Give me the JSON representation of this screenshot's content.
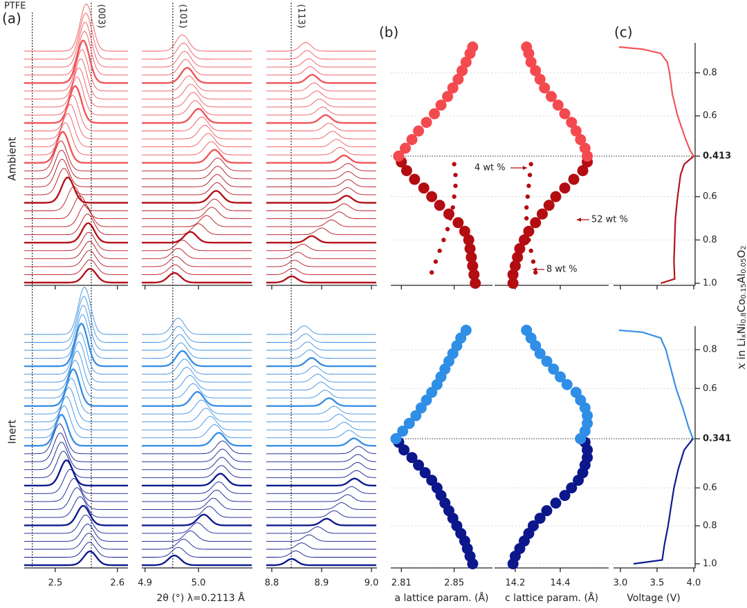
{
  "chart_data": [
    {
      "type": "waterfall",
      "label": "(a)",
      "xlabel": "2θ (°) λ=0.2113 Å",
      "panels": [
        {
          "xlim": [
            2.45,
            2.617
          ],
          "xticks": [
            2.5,
            2.6
          ],
          "ref_lines": [
            {
              "value": 2.463,
              "label": "PTFE"
            },
            {
              "value": 2.558,
              "label": "(003)"
            }
          ]
        },
        {
          "xlim": [
            4.894,
            5.101
          ],
          "xticks": [
            4.9,
            {
              "value": 5,
              "label": "5.0"
            }
          ],
          "ref_lines": [
            {
              "value": 4.952,
              "label": "(101)"
            }
          ]
        },
        {
          "xlim": [
            8.789,
            9.011
          ],
          "xticks": [
            8.8,
            8.9,
            {
              "value": 9,
              "label": "9.0"
            }
          ],
          "ref_lines": [
            {
              "value": 8.839,
              "label": "(113)"
            }
          ]
        }
      ],
      "groups": [
        {
          "name": "Ambient",
          "color": "#e8474c",
          "segments": [
            {
              "color": "#b3121a",
              "peaks": [
                [
                  2.556,
                  2.556,
                  2.555,
                  2.555,
                  2.554,
                  2.553,
                  2.552,
                  2.548,
                  2.54,
                  2.53,
                  2.52,
                  2.514,
                  2.511,
                  2.51,
                  2.509
                ],
                [
                  4.955,
                  4.956,
                  4.958,
                  4.962,
                  4.97,
                  4.985,
                  5.0,
                  5.015,
                  5.025,
                  5.03,
                  5.033,
                  5.035,
                  5.035,
                  5.036,
                  5.036
                ],
                [
                  8.84,
                  8.842,
                  8.846,
                  8.852,
                  8.862,
                  8.88,
                  8.9,
                  8.92,
                  8.935,
                  8.945,
                  8.95,
                  8.952,
                  8.953,
                  8.953,
                  8.953
                ]
              ]
            },
            {
              "color": "#f0555a",
              "peaks": [
                [
                  2.512,
                  2.516,
                  2.52,
                  2.524,
                  2.528,
                  2.532,
                  2.535,
                  2.538,
                  2.541,
                  2.543,
                  2.545,
                  2.547,
                  2.548,
                  2.549,
                  2.55
                ],
                [
                  5.03,
                  5.024,
                  5.018,
                  5.012,
                  5.006,
                  5.0,
                  4.994,
                  4.99,
                  4.986,
                  4.982,
                  4.979,
                  4.976,
                  4.974,
                  4.972,
                  4.97
                ],
                [
                  8.945,
                  8.937,
                  8.93,
                  8.922,
                  8.915,
                  8.908,
                  8.902,
                  8.896,
                  8.89,
                  8.885,
                  8.881,
                  8.877,
                  8.874,
                  8.871,
                  8.868
                ]
              ]
            }
          ]
        },
        {
          "name": "Inert",
          "color": "#3b4fd6",
          "segments": [
            {
              "color": "#0d1a8e",
              "peaks": [
                [
                  2.556,
                  2.555,
                  2.554,
                  2.552,
                  2.549,
                  2.545,
                  2.54,
                  2.535,
                  2.53,
                  2.524,
                  2.518,
                  2.513,
                  2.51,
                  2.508,
                  2.507
                ],
                [
                  4.955,
                  4.962,
                  4.972,
                  4.985,
                  4.998,
                  5.01,
                  5.02,
                  5.028,
                  5.034,
                  5.038,
                  5.041,
                  5.043,
                  5.044,
                  5.045,
                  5.045
                ],
                [
                  8.84,
                  8.848,
                  8.86,
                  8.875,
                  8.892,
                  8.91,
                  8.925,
                  8.94,
                  8.952,
                  8.96,
                  8.966,
                  8.97,
                  8.972,
                  8.973,
                  8.974
                ]
              ]
            },
            {
              "color": "#3a8fe2",
              "peaks": [
                [
                  2.51,
                  2.514,
                  2.518,
                  2.522,
                  2.526,
                  2.529,
                  2.532,
                  2.535,
                  2.538,
                  2.54,
                  2.542,
                  2.544,
                  2.545,
                  2.546,
                  2.547
                ],
                [
                  5.038,
                  5.03,
                  5.022,
                  5.014,
                  5.006,
                  4.998,
                  4.99,
                  4.984,
                  4.978,
                  4.974,
                  4.97,
                  4.967,
                  4.965,
                  4.963,
                  4.962
                ],
                [
                  8.965,
                  8.955,
                  8.945,
                  8.935,
                  8.925,
                  8.915,
                  8.907,
                  8.899,
                  8.892,
                  8.886,
                  8.88,
                  8.876,
                  8.872,
                  8.868,
                  8.865
                ]
              ]
            }
          ]
        }
      ]
    },
    {
      "type": "scatter",
      "label": "(b)",
      "panels": [
        {
          "key": "a",
          "xlabel": "a lattice param. (Å)",
          "xlim": [
            2.802,
            2.879
          ],
          "xticks": [
            2.81,
            2.85
          ]
        },
        {
          "key": "c",
          "xlabel": "c lattice param. (Å)",
          "xlim": [
            14.108,
            14.615
          ],
          "xticks": [
            14.2,
            14.4
          ]
        }
      ],
      "groups": [
        {
          "series": [
            {
              "color": "#b30d12",
              "x": [
                1.0,
                0.96,
                0.92,
                0.88,
                0.84,
                0.8,
                0.76,
                0.72,
                0.68,
                0.64,
                0.6,
                0.56,
                0.52,
                0.48,
                0.44,
                0.413
              ],
              "a": [
                2.866,
                2.865,
                2.864,
                2.863,
                2.862,
                2.861,
                2.858,
                2.853,
                2.846,
                2.839,
                2.833,
                2.827,
                2.82,
                2.814,
                2.81,
                2.808
              ],
              "c": [
                14.19,
                14.19,
                14.2,
                14.21,
                14.22,
                14.24,
                14.26,
                14.29,
                14.32,
                14.35,
                14.38,
                14.42,
                14.46,
                14.5,
                14.52,
                14.52
              ]
            },
            {
              "color": "#f44a4f",
              "x": [
                0.413,
                0.45,
                0.49,
                0.53,
                0.57,
                0.61,
                0.65,
                0.69,
                0.73,
                0.77,
                0.81,
                0.85,
                0.89,
                0.92
              ],
              "a": [
                2.808,
                2.813,
                2.818,
                2.823,
                2.829,
                2.835,
                2.84,
                2.845,
                2.849,
                2.853,
                2.856,
                2.859,
                2.862,
                2.864
              ],
              "c": [
                14.52,
                14.51,
                14.49,
                14.47,
                14.45,
                14.42,
                14.39,
                14.36,
                14.33,
                14.31,
                14.29,
                14.27,
                14.26,
                14.25
              ]
            }
          ],
          "minor": {
            "color": "#b30d12",
            "x": [
              0.45,
              0.5,
              0.55,
              0.6,
              0.65,
              0.7,
              0.75,
              0.8,
              0.85,
              0.9,
              0.95
            ],
            "a": [
              2.85,
              2.851,
              2.851,
              2.85,
              2.849,
              2.847,
              2.845,
              2.842,
              2.839,
              2.836,
              2.833
            ],
            "c": [
              14.27,
              14.265,
              14.26,
              14.255,
              14.25,
              14.25,
              14.255,
              14.26,
              14.27,
              14.28,
              14.29
            ]
          },
          "annotations": [
            "4 wt %",
            "52 wt %",
            "8 wt %"
          ]
        },
        {
          "series": [
            {
              "color": "#0c178c",
              "x": [
                1.0,
                0.96,
                0.92,
                0.88,
                0.84,
                0.8,
                0.76,
                0.72,
                0.68,
                0.64,
                0.6,
                0.56,
                0.52,
                0.48,
                0.44,
                0.4,
                0.36,
                0.341
              ],
              "a": [
                2.864,
                2.862,
                2.86,
                2.858,
                2.855,
                2.852,
                2.849,
                2.846,
                2.843,
                2.84,
                2.837,
                2.833,
                2.828,
                2.823,
                2.818,
                2.812,
                2.808,
                2.806
              ],
              "c": [
                14.19,
                14.2,
                14.22,
                14.24,
                14.26,
                14.28,
                14.31,
                14.34,
                14.38,
                14.42,
                14.45,
                14.48,
                14.5,
                14.51,
                14.52,
                14.52,
                14.51,
                14.49
              ]
            },
            {
              "color": "#2f8ee6",
              "x": [
                0.341,
                0.38,
                0.42,
                0.46,
                0.5,
                0.54,
                0.58,
                0.62,
                0.66,
                0.7,
                0.74,
                0.78,
                0.82,
                0.86,
                0.9
              ],
              "a": [
                2.806,
                2.811,
                2.816,
                2.821,
                2.825,
                2.829,
                2.833,
                2.837,
                2.84,
                2.843,
                2.846,
                2.849,
                2.852,
                2.855,
                2.859
              ],
              "c": [
                14.49,
                14.51,
                14.52,
                14.52,
                14.51,
                14.49,
                14.47,
                14.43,
                14.4,
                14.37,
                14.34,
                14.31,
                14.29,
                14.27,
                14.25
              ]
            }
          ]
        }
      ]
    },
    {
      "type": "line",
      "label": "(c)",
      "xlabel": "Voltage (V)",
      "xlim": [
        2.906,
        4.019
      ],
      "xticks": [
        {
          "value": 3,
          "label": "3.0"
        },
        3.5,
        {
          "value": 4,
          "label": "4.0"
        }
      ],
      "ylabel_parts": [
        "x",
        " in Li",
        "x",
        "Ni",
        "0.8",
        "Co",
        "0.15",
        "Al",
        "0.05",
        "O",
        "2"
      ],
      "groups": [
        {
          "ylim_lower": [
            1.0,
            0.413
          ],
          "ylim_upper": [
            0.413,
            0.92
          ],
          "yticks_lower": [
            {
              "value": 1,
              "label": "1.0"
            },
            0.8,
            0.6,
            0.413
          ],
          "yticks_upper": [
            0.6,
            0.8
          ],
          "series": [
            {
              "color": "#b3121a",
              "x": [
                1.0,
                0.98,
                0.9,
                0.8,
                0.7,
                0.6,
                0.5,
                0.45,
                0.413
              ],
              "v": [
                3.55,
                3.74,
                3.73,
                3.74,
                3.75,
                3.78,
                3.82,
                3.87,
                4.0
              ]
            },
            {
              "color": "#f0555a",
              "x": [
                0.413,
                0.44,
                0.5,
                0.6,
                0.7,
                0.8,
                0.85,
                0.89,
                0.91,
                0.92
              ],
              "v": [
                4.0,
                3.95,
                3.88,
                3.78,
                3.71,
                3.67,
                3.64,
                3.55,
                3.3,
                2.98
              ]
            }
          ]
        },
        {
          "ylim_lower": [
            1.0,
            0.341
          ],
          "ylim_upper": [
            0.341,
            0.9
          ],
          "yticks_lower": [
            {
              "value": 1,
              "label": "1.0"
            },
            0.8,
            0.6,
            0.341
          ],
          "yticks_upper": [
            0.6,
            0.8
          ],
          "series": [
            {
              "color": "#0d1a8e",
              "x": [
                1.0,
                0.98,
                0.9,
                0.8,
                0.7,
                0.6,
                0.5,
                0.4,
                0.341
              ],
              "v": [
                3.18,
                3.57,
                3.6,
                3.65,
                3.69,
                3.73,
                3.79,
                3.87,
                3.99
              ]
            },
            {
              "color": "#3a8fe2",
              "x": [
                0.341,
                0.4,
                0.5,
                0.6,
                0.7,
                0.8,
                0.86,
                0.89,
                0.9
              ],
              "v": [
                3.99,
                3.93,
                3.85,
                3.76,
                3.69,
                3.62,
                3.55,
                3.3,
                2.98
              ]
            }
          ]
        }
      ]
    }
  ]
}
